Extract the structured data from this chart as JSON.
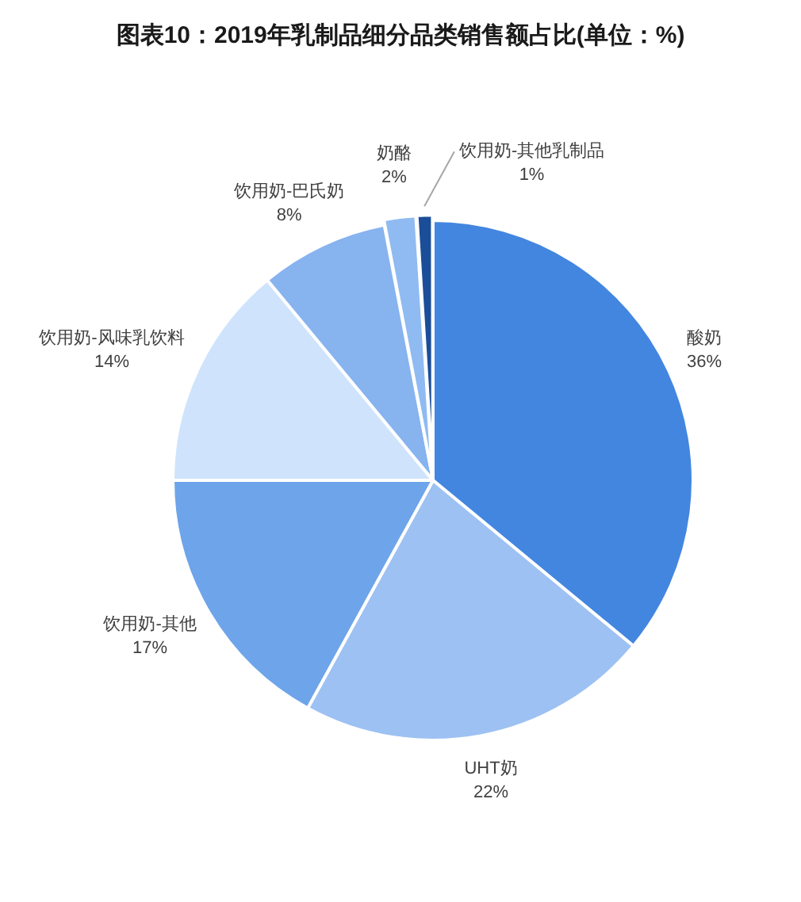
{
  "chart_data": {
    "type": "pie",
    "title": "图表10：2019年乳制品细分品类销售额占比(单位：%)",
    "categories": [
      "酸奶",
      "UHT奶",
      "饮用奶-其他",
      "饮用奶-风味乳饮料",
      "饮用奶-巴氏奶",
      "奶酪",
      "饮用奶-其他乳制品"
    ],
    "values": [
      36,
      22,
      17,
      14,
      8,
      2,
      1
    ],
    "value_labels": [
      "36%",
      "22%",
      "17%",
      "14%",
      "8%",
      "2%",
      "1%"
    ],
    "colors": [
      "#4386e0",
      "#9dc1f2",
      "#6ea4e9",
      "#cfe4fc",
      "#87b3ef",
      "#8fbbf2",
      "#1b4e98"
    ]
  }
}
